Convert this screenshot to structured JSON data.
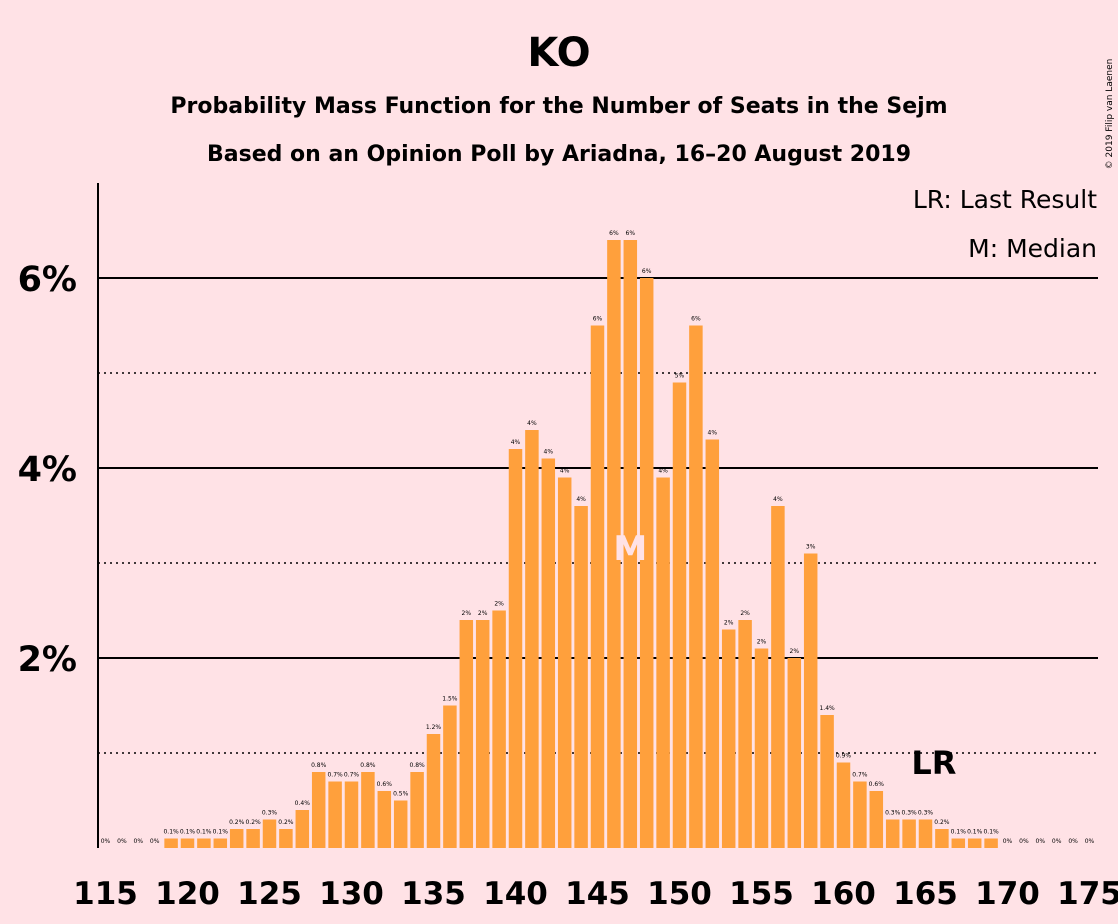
{
  "chart_data": {
    "type": "bar",
    "title": "KO",
    "subtitle_line1": "Probability Mass Function for the Number of Seats in the Sejm",
    "subtitle_line2": "Based on an Opinion Poll by Ariadna, 16–20 August 2019",
    "copyright": "© 2019 Filip van Laenen",
    "legend": [
      "LR: Last Result",
      "M: Median"
    ],
    "legend_position": "top-right",
    "bar_color": "#FFA03C",
    "x": [
      115,
      116,
      117,
      118,
      119,
      120,
      121,
      122,
      123,
      124,
      125,
      126,
      127,
      128,
      129,
      130,
      131,
      132,
      133,
      134,
      135,
      136,
      137,
      138,
      139,
      140,
      141,
      142,
      143,
      144,
      145,
      146,
      147,
      148,
      149,
      150,
      151,
      152,
      153,
      154,
      155,
      156,
      157,
      158,
      159,
      160,
      161,
      162,
      163,
      164,
      165,
      166,
      167,
      168,
      169,
      170,
      171,
      172,
      173,
      174,
      175
    ],
    "values": [
      0.0,
      0.0,
      0.0,
      0.0,
      0.1,
      0.1,
      0.1,
      0.1,
      0.2,
      0.2,
      0.3,
      0.2,
      0.4,
      0.8,
      0.7,
      0.7,
      0.8,
      0.6,
      0.5,
      0.8,
      1.2,
      1.5,
      2.4,
      2.4,
      2.5,
      4.2,
      4.4,
      4.1,
      3.9,
      3.6,
      5.5,
      6.4,
      6.4,
      6.0,
      3.9,
      4.9,
      5.5,
      4.3,
      2.3,
      2.4,
      2.1,
      3.6,
      2.0,
      3.1,
      1.4,
      0.9,
      0.7,
      0.6,
      0.3,
      0.3,
      0.3,
      0.2,
      0.1,
      0.1,
      0.1,
      0.0,
      0.0,
      0.0,
      0.0,
      0.0,
      0.0
    ],
    "value_labels": [
      "0%",
      "0%",
      "0%",
      "0%",
      "0.1%",
      "0.1%",
      "0.1%",
      "0.1%",
      "0.2%",
      "0.2%",
      "0.3%",
      "0.2%",
      "0.4%",
      "0.8%",
      "0.7%",
      "0.7%",
      "0.8%",
      "0.6%",
      "0.5%",
      "0.8%",
      "1.2%",
      "1.5%",
      "2%",
      "2%",
      "2%",
      "4%",
      "4%",
      "4%",
      "4%",
      "4%",
      "6%",
      "6%",
      "6%",
      "6%",
      "4%",
      "5%",
      "6%",
      "4%",
      "2%",
      "2%",
      "2%",
      "4%",
      "2%",
      "3%",
      "1.4%",
      "0.9%",
      "0.7%",
      "0.6%",
      "0.3%",
      "0.3%",
      "0.3%",
      "0.2%",
      "0.1%",
      "0.1%",
      "0.1%",
      "0%",
      "0%",
      "0%",
      "0%",
      "0%",
      "0%"
    ],
    "ylim": [
      0,
      7
    ],
    "y_ticks": [
      2,
      4,
      6
    ],
    "y_tick_labels": [
      "2%",
      "4%",
      "6%"
    ],
    "y_minor_ticks": [
      1,
      3,
      5
    ],
    "x_tick_labels": [
      "115",
      "120",
      "125",
      "130",
      "135",
      "140",
      "145",
      "150",
      "155",
      "160",
      "165",
      "170",
      "175"
    ],
    "median": 147,
    "median_marker": "M",
    "last_result": 166,
    "last_result_marker": "LR"
  }
}
